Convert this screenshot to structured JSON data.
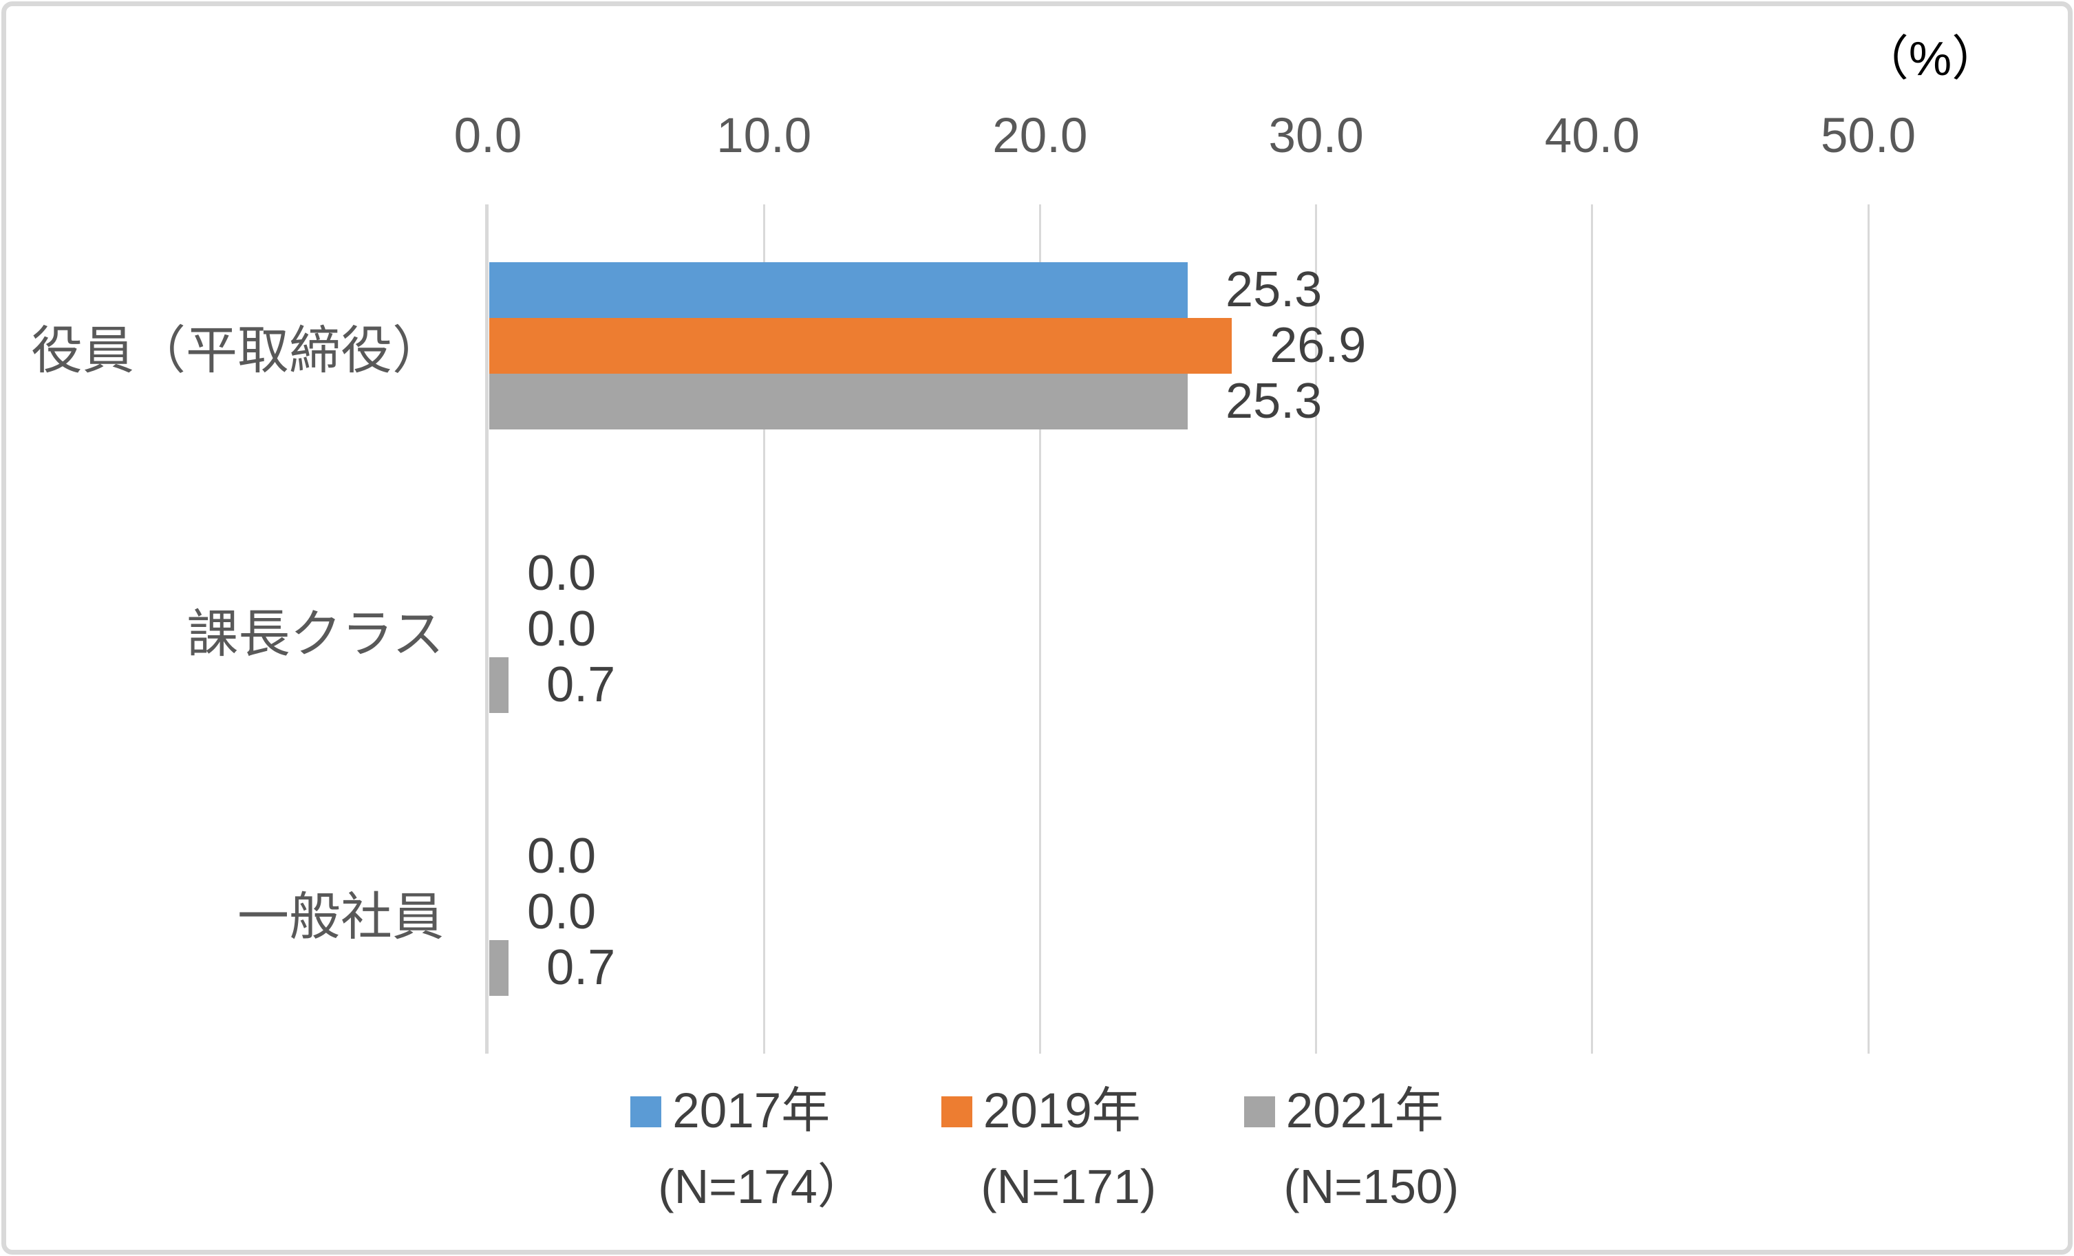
{
  "frame": {
    "border_color": "#D9D9D9",
    "background": "#FFFFFF"
  },
  "chart_data": {
    "type": "bar",
    "orientation": "horizontal",
    "title": "",
    "unit": "（%）",
    "categories": [
      "役員（平取締役）",
      "課長クラス",
      "一般社員"
    ],
    "series": [
      {
        "name": "2017年",
        "n_label": "(N=174）",
        "color": "#5B9BD5",
        "values": [
          25.3,
          0.0,
          0.0
        ]
      },
      {
        "name": "2019年",
        "n_label": "(N=171)",
        "color": "#ED7D31",
        "values": [
          26.9,
          0.0,
          0.0
        ]
      },
      {
        "name": "2021年",
        "n_label": "(N=150)",
        "color": "#A5A5A5",
        "values": [
          25.3,
          0.7,
          0.7
        ]
      }
    ],
    "x_ticks": [
      0.0,
      10.0,
      20.0,
      30.0,
      40.0,
      50.0
    ],
    "x_tick_labels": [
      "0.0",
      "10.0",
      "20.0",
      "30.0",
      "40.0",
      "50.0"
    ],
    "xlim": [
      0,
      50
    ],
    "value_labels": true,
    "value_label_decimals": 1,
    "grid": "vertical",
    "legend_position": "bottom",
    "colors": {
      "tick_text": "#595959",
      "category_text": "#595959",
      "value_text": "#404040",
      "legend_text": "#404040",
      "gridline": "#D9D9D9",
      "unit_text": "#000000"
    }
  }
}
